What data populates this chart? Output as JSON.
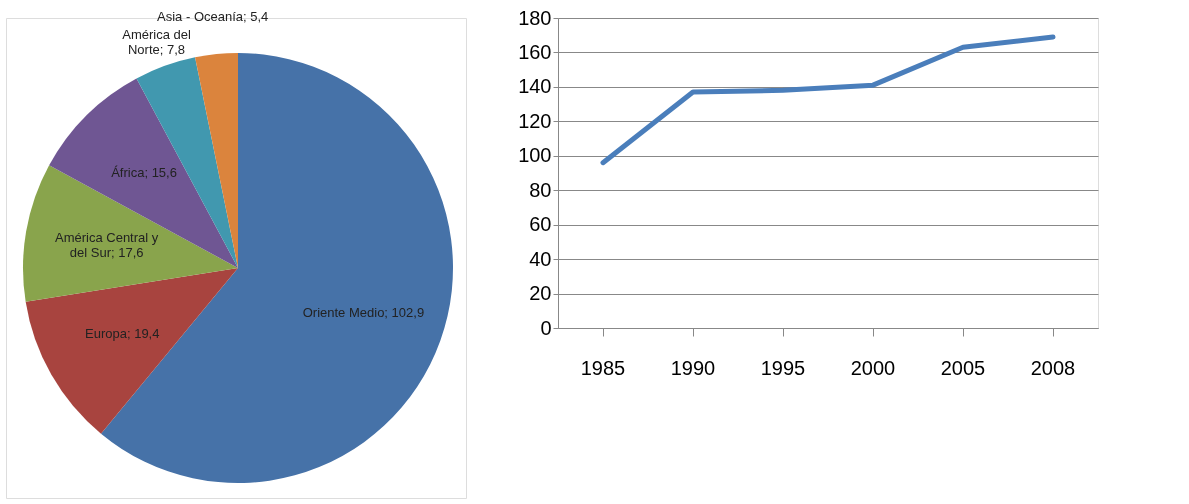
{
  "chart_data": [
    {
      "type": "pie",
      "categories": [
        "Oriente Medio",
        "Europa",
        "América Central y del Sur",
        "África",
        "América del Norte",
        "Asia - Oceanía"
      ],
      "values": [
        102.9,
        19.4,
        17.6,
        15.6,
        7.8,
        5.4
      ],
      "value_labels": [
        "102,9",
        "19,4",
        "17,6",
        "15,6",
        "7,8",
        "5,4"
      ],
      "colors": [
        "#4672a8",
        "#a8443f",
        "#89a44c",
        "#6f5693",
        "#4198af",
        "#db843d"
      ],
      "legend": false
    },
    {
      "type": "line",
      "categories": [
        "1985",
        "1990",
        "1995",
        "2000",
        "2005",
        "2008"
      ],
      "series": [
        {
          "color": "#4a7ebb",
          "values": [
            96,
            137,
            138,
            141,
            163,
            169
          ]
        }
      ],
      "ylim": [
        0,
        180
      ],
      "yticks": [
        0,
        20,
        40,
        60,
        80,
        100,
        120,
        140,
        160,
        180
      ],
      "grid": "y",
      "marker": "none",
      "line_style": "solid"
    }
  ]
}
